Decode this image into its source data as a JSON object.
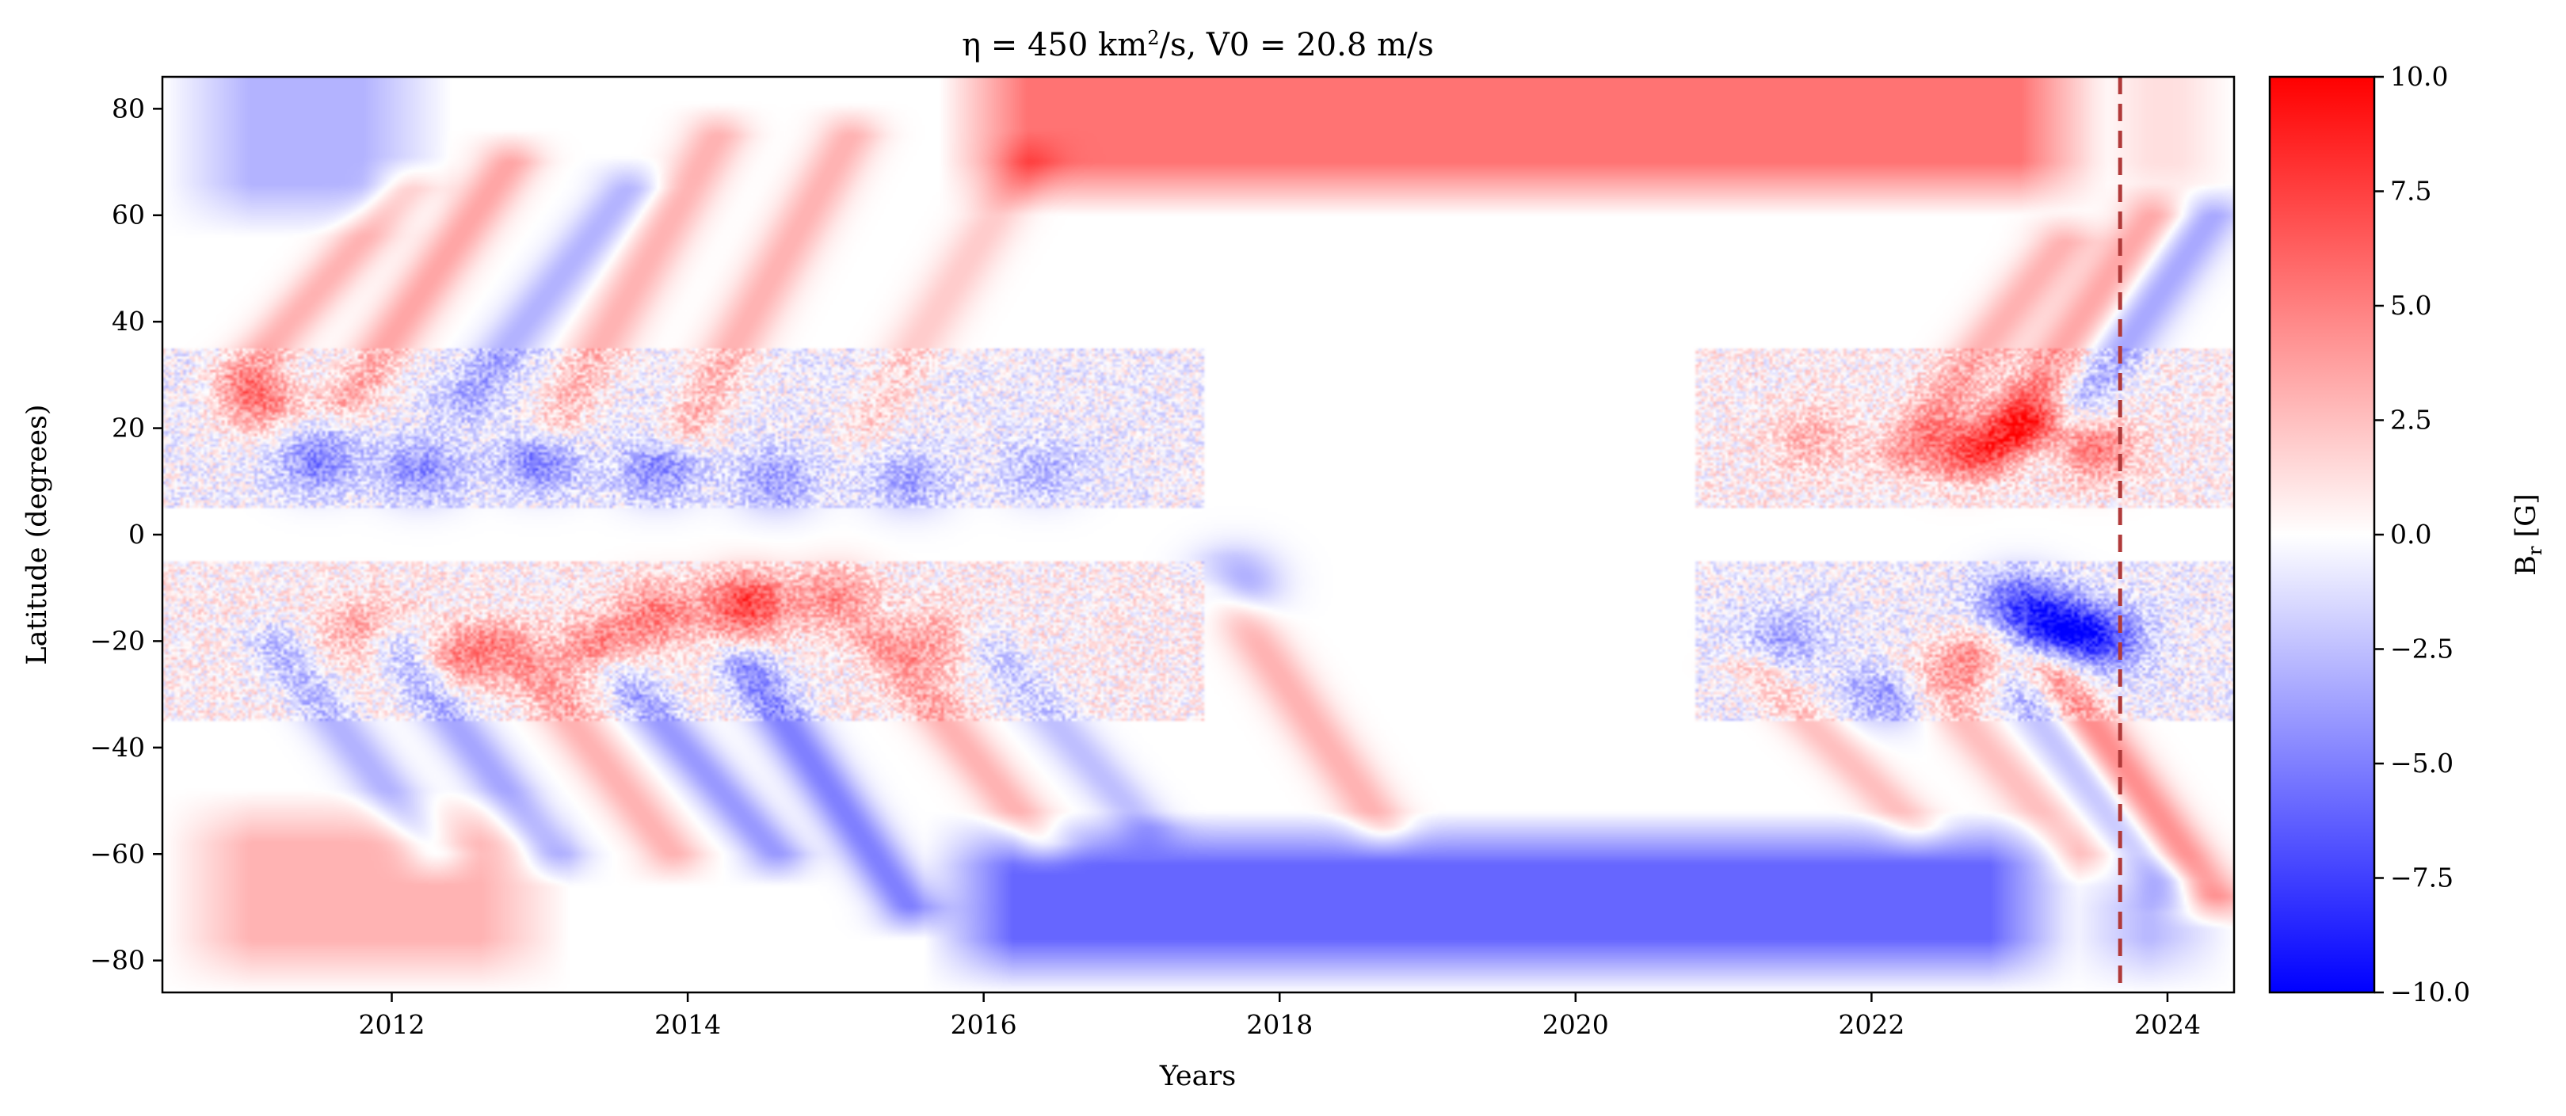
{
  "chart_data": {
    "type": "heatmap",
    "title_prefix": "η = 450 km",
    "title_sup": "2",
    "title_suffix": "/s, V0 = 20.8 m/s",
    "xlabel": "Years",
    "ylabel": "Latitude (degrees)",
    "xlim": [
      2010.45,
      2024.45
    ],
    "ylim": [
      -86,
      86
    ],
    "xticks": [
      2012,
      2014,
      2016,
      2018,
      2020,
      2022,
      2024
    ],
    "yticks": [
      80,
      60,
      40,
      20,
      0,
      -20,
      -40,
      -60,
      -80
    ],
    "grid": false,
    "colorbar": {
      "label_main": "B",
      "label_sub": "r",
      "label_unit": " [G]",
      "range": [
        -10,
        10
      ],
      "ticks": [
        "10.0",
        "7.5",
        "5.0",
        "2.5",
        "0.0",
        "−2.5",
        "−5.0",
        "−7.5",
        "−10.0"
      ],
      "colormap": "bwr",
      "color_min": "#0000ff",
      "color_mid": "#ffffff",
      "color_max": "#ff0000"
    },
    "vline": {
      "x": 2023.68,
      "style": "dashed",
      "color": "#b03a3a"
    },
    "features": [
      {
        "type": "polar",
        "t0": 2010.45,
        "t1": 2012.4,
        "lat0": 56,
        "lat1": 86,
        "value": -3.0
      },
      {
        "type": "polar",
        "t0": 2015.7,
        "t1": 2023.6,
        "lat0": 60,
        "lat1": 86,
        "value": 5.5
      },
      {
        "type": "polar",
        "t0": 2010.45,
        "t1": 2013.2,
        "lat0": -86,
        "lat1": -58,
        "value": 3.0
      },
      {
        "type": "polar",
        "t0": 2015.6,
        "t1": 2023.4,
        "lat0": -86,
        "lat1": -62,
        "value": -6.0
      },
      {
        "type": "polar",
        "t0": 2023.5,
        "t1": 2024.45,
        "lat0": 60,
        "lat1": 86,
        "value": 2.0
      },
      {
        "type": "polar",
        "t0": 2023.3,
        "t1": 2024.45,
        "lat0": -86,
        "lat1": -70,
        "value": -3.0
      },
      {
        "type": "surge",
        "t": 2011.0,
        "lat0": 30,
        "lat1": 65,
        "value": 3.0
      },
      {
        "type": "surge",
        "t": 2011.7,
        "lat0": 25,
        "lat1": 70,
        "value": 3.5
      },
      {
        "type": "surge",
        "t": 2012.5,
        "lat0": 25,
        "lat1": 65,
        "value": -3.0
      },
      {
        "type": "surge",
        "t": 2013.1,
        "lat0": 20,
        "lat1": 75,
        "value": 3.0
      },
      {
        "type": "surge",
        "t": 2014.0,
        "lat0": 20,
        "lat1": 75,
        "value": 3.0
      },
      {
        "type": "surge",
        "t": 2015.2,
        "lat0": 20,
        "lat1": 70,
        "value": 2.0
      },
      {
        "type": "surge",
        "t": 2022.2,
        "lat0": 15,
        "lat1": 55,
        "value": 3.0
      },
      {
        "type": "surge",
        "t": 2022.8,
        "lat0": 15,
        "lat1": 60,
        "value": 3.5
      },
      {
        "type": "surge",
        "t": 2023.2,
        "lat0": 15,
        "lat1": 60,
        "value": -3.5
      },
      {
        "type": "surge",
        "t": 2011.2,
        "lat0": -60,
        "lat1": -20,
        "value": -3.0
      },
      {
        "type": "surge",
        "t": 2012.0,
        "lat0": -60,
        "lat1": -20,
        "value": -3.5
      },
      {
        "type": "surge",
        "t": 2012.8,
        "lat0": -60,
        "lat1": -20,
        "value": 3.0
      },
      {
        "type": "surge",
        "t": 2013.5,
        "lat0": -60,
        "lat1": -25,
        "value": -4.0
      },
      {
        "type": "surge",
        "t": 2014.4,
        "lat0": -70,
        "lat1": -25,
        "value": -5.0
      },
      {
        "type": "surge",
        "t": 2015.3,
        "lat0": -58,
        "lat1": -20,
        "value": 3.0
      },
      {
        "type": "surge",
        "t": 2016.0,
        "lat0": -55,
        "lat1": -20,
        "value": -2.5
      },
      {
        "type": "surge",
        "t": 2017.6,
        "lat0": -55,
        "lat1": -10,
        "value": 3.0
      },
      {
        "type": "surge",
        "t": 2021.2,
        "lat0": -55,
        "lat1": -25,
        "value": 2.5
      },
      {
        "type": "surge",
        "t": 2022.3,
        "lat0": -60,
        "lat1": -25,
        "value": 2.5
      },
      {
        "type": "surge",
        "t": 2022.9,
        "lat0": -65,
        "lat1": -25,
        "value": -3.0
      },
      {
        "type": "surge",
        "t": 2023.2,
        "lat0": -68,
        "lat1": -25,
        "value": 5.0
      },
      {
        "type": "blob",
        "t": 2014.4,
        "lat": -13,
        "value": 7.0
      },
      {
        "type": "blob",
        "t": 2013.8,
        "lat": -15,
        "value": 4.5
      },
      {
        "type": "blob",
        "t": 2013.4,
        "lat": -22,
        "value": 5.0
      },
      {
        "type": "blob",
        "t": 2012.5,
        "lat": -23,
        "value": 4.5
      },
      {
        "type": "blob",
        "t": 2011.8,
        "lat": -18,
        "value": 3.5
      },
      {
        "type": "blob",
        "t": 2015.0,
        "lat": -12,
        "value": 4.0
      },
      {
        "type": "blob",
        "t": 2015.7,
        "lat": -20,
        "value": 3.0
      },
      {
        "type": "blob",
        "t": 2011.1,
        "lat": 25,
        "value": 5.5
      },
      {
        "type": "blob",
        "t": 2011.5,
        "lat": 14,
        "value": -4.5
      },
      {
        "type": "blob",
        "t": 2012.2,
        "lat": 12,
        "value": -4.0
      },
      {
        "type": "blob",
        "t": 2013.0,
        "lat": 14,
        "value": -4.5
      },
      {
        "type": "blob",
        "t": 2013.8,
        "lat": 12,
        "value": -4.0
      },
      {
        "type": "blob",
        "t": 2014.6,
        "lat": 10,
        "value": -3.5
      },
      {
        "type": "blob",
        "t": 2015.5,
        "lat": 10,
        "value": -3.0
      },
      {
        "type": "blob",
        "t": 2016.4,
        "lat": 12,
        "value": -2.5
      },
      {
        "type": "blob",
        "t": 2017.7,
        "lat": -9,
        "value": -4.5
      },
      {
        "type": "blob",
        "t": 2023.3,
        "lat": -18,
        "value": -8.0
      },
      {
        "type": "blob",
        "t": 2023.0,
        "lat": -13,
        "value": -6.0
      },
      {
        "type": "blob",
        "t": 2023.6,
        "lat": -20,
        "value": -5.0
      },
      {
        "type": "blob",
        "t": 2023.1,
        "lat": 20,
        "value": 6.5
      },
      {
        "type": "blob",
        "t": 2022.6,
        "lat": 16,
        "value": 5.0
      },
      {
        "type": "blob",
        "t": 2023.5,
        "lat": 16,
        "value": 5.0
      },
      {
        "type": "blob",
        "t": 2022.7,
        "lat": -24,
        "value": 5.5
      },
      {
        "type": "blob",
        "t": 2022.1,
        "lat": -30,
        "value": -3.5
      },
      {
        "type": "blob",
        "t": 2021.4,
        "lat": -20,
        "value": -3.0
      },
      {
        "type": "blob",
        "t": 2021.6,
        "lat": 18,
        "value": 2.5
      }
    ]
  }
}
